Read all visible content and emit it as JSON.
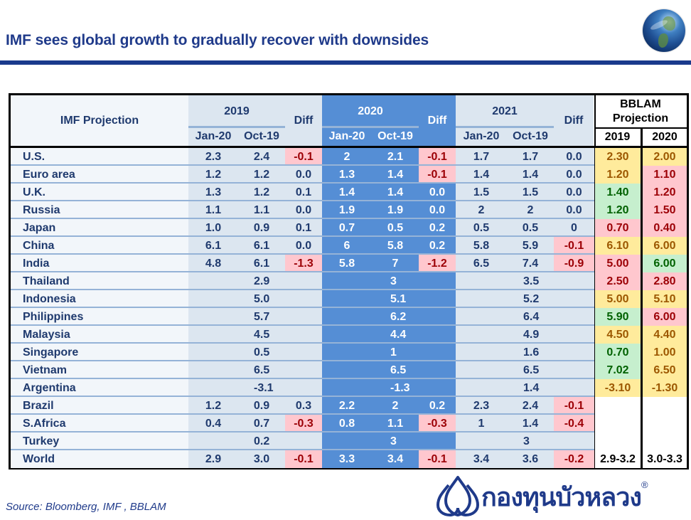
{
  "header": {
    "title": "IMF sees global growth to gradually recover with downsides",
    "globe_icon": "globe-icon"
  },
  "table": {
    "label_header": "IMF Projection",
    "groups": [
      {
        "year": "2019",
        "sub": [
          "Jan-20",
          "Oct-19"
        ],
        "diff": "Diff"
      },
      {
        "year": "2020",
        "sub": [
          "Jan-20",
          "Oct-19"
        ],
        "diff": "Diff"
      },
      {
        "year": "2021",
        "sub": [
          "Jan-20",
          "Oct-19"
        ],
        "diff": "Diff"
      }
    ],
    "bblam": {
      "title_line1": "BBLAM",
      "title_line2": "Projection",
      "years": [
        "2019",
        "2020"
      ]
    },
    "colors": {
      "negative_bg": "#ffc7ce",
      "negative_text": "#9c0006",
      "green_bg": "#c6efce",
      "green_text": "#006100",
      "yellow_bg": "#ffeb9c",
      "yellow_text": "#9c5700",
      "blue_block": "#558ed5",
      "light_block": "#dce6f0",
      "title_blue": "#1f3a8a"
    },
    "rows": [
      {
        "name": "U.S.",
        "y2019": [
          "2.3",
          "2.4",
          "-0.1"
        ],
        "y2020": [
          "2",
          "2.1",
          "-0.1"
        ],
        "y2021": [
          "1.7",
          "1.7",
          "0.0"
        ],
        "bblam": [
          {
            "v": "2.30",
            "c": "yellow"
          },
          {
            "v": "2.00",
            "c": "yellow"
          }
        ]
      },
      {
        "name": "Euro area",
        "y2019": [
          "1.2",
          "1.2",
          "0.0"
        ],
        "y2020": [
          "1.3",
          "1.4",
          "-0.1"
        ],
        "y2021": [
          "1.4",
          "1.4",
          "0.0"
        ],
        "bblam": [
          {
            "v": "1.20",
            "c": "yellow"
          },
          {
            "v": "1.10",
            "c": "red"
          }
        ]
      },
      {
        "name": "U.K.",
        "y2019": [
          "1.3",
          "1.2",
          "0.1"
        ],
        "y2020": [
          "1.4",
          "1.4",
          "0.0"
        ],
        "y2021": [
          "1.5",
          "1.5",
          "0.0"
        ],
        "bblam": [
          {
            "v": "1.40",
            "c": "green"
          },
          {
            "v": "1.20",
            "c": "red"
          }
        ]
      },
      {
        "name": "Russia",
        "y2019": [
          "1.1",
          "1.1",
          "0.0"
        ],
        "y2020": [
          "1.9",
          "1.9",
          "0.0"
        ],
        "y2021": [
          "2",
          "2",
          "0.0"
        ],
        "bblam": [
          {
            "v": "1.20",
            "c": "green"
          },
          {
            "v": "1.50",
            "c": "red"
          }
        ]
      },
      {
        "name": "Japan",
        "y2019": [
          "1.0",
          "0.9",
          "0.1"
        ],
        "y2020": [
          "0.7",
          "0.5",
          "0.2"
        ],
        "y2021": [
          "0.5",
          "0.5",
          "0"
        ],
        "bblam": [
          {
            "v": "0.70",
            "c": "red"
          },
          {
            "v": "0.40",
            "c": "red"
          }
        ]
      },
      {
        "name": "China",
        "y2019": [
          "6.1",
          "6.1",
          "0.0"
        ],
        "y2020": [
          "6",
          "5.8",
          "0.2"
        ],
        "y2021": [
          "5.8",
          "5.9",
          "-0.1"
        ],
        "bblam": [
          {
            "v": "6.10",
            "c": "yellow"
          },
          {
            "v": "6.00",
            "c": "yellow"
          }
        ]
      },
      {
        "name": "India",
        "y2019": [
          "4.8",
          "6.1",
          "-1.3"
        ],
        "y2020": [
          "5.8",
          "7",
          "-1.2"
        ],
        "y2021": [
          "6.5",
          "7.4",
          "-0.9"
        ],
        "bblam": [
          {
            "v": "5.00",
            "c": "red"
          },
          {
            "v": "6.00",
            "c": "green"
          }
        ]
      },
      {
        "name": "Thailand",
        "single": [
          "2.9",
          "3",
          "3.5"
        ],
        "bblam": [
          {
            "v": "2.50",
            "c": "red"
          },
          {
            "v": "2.80",
            "c": "red"
          }
        ]
      },
      {
        "name": "Indonesia",
        "single": [
          "5.0",
          "5.1",
          "5.2"
        ],
        "bblam": [
          {
            "v": "5.00",
            "c": "yellow"
          },
          {
            "v": "5.10",
            "c": "yellow"
          }
        ]
      },
      {
        "name": "Philippines",
        "single": [
          "5.7",
          "6.2",
          "6.4"
        ],
        "bblam": [
          {
            "v": "5.90",
            "c": "green"
          },
          {
            "v": "6.00",
            "c": "red"
          }
        ]
      },
      {
        "name": "Malaysia",
        "single": [
          "4.5",
          "4.4",
          "4.9"
        ],
        "bblam": [
          {
            "v": "4.50",
            "c": "yellow"
          },
          {
            "v": "4.40",
            "c": "yellow"
          }
        ]
      },
      {
        "name": "Singapore",
        "single": [
          "0.5",
          "1",
          "1.6"
        ],
        "bblam": [
          {
            "v": "0.70",
            "c": "green"
          },
          {
            "v": "1.00",
            "c": "yellow"
          }
        ]
      },
      {
        "name": "Vietnam",
        "single": [
          "6.5",
          "6.5",
          "6.5"
        ],
        "bblam": [
          {
            "v": "7.02",
            "c": "green"
          },
          {
            "v": "6.50",
            "c": "yellow"
          }
        ]
      },
      {
        "name": "Argentina",
        "single": [
          "-3.1",
          "-1.3",
          "1.4"
        ],
        "bblam": [
          {
            "v": "-3.10",
            "c": "yellow"
          },
          {
            "v": "-1.30",
            "c": "yellow"
          }
        ]
      },
      {
        "name": "Brazil",
        "y2019": [
          "1.2",
          "0.9",
          "0.3"
        ],
        "y2020": [
          "2.2",
          "2",
          "0.2"
        ],
        "y2021": [
          "2.3",
          "2.4",
          "-0.1"
        ],
        "bblam": [
          {
            "v": "",
            "c": "plain"
          },
          {
            "v": "",
            "c": "plain"
          }
        ]
      },
      {
        "name": "S.Africa",
        "y2019": [
          "0.4",
          "0.7",
          "-0.3"
        ],
        "y2020": [
          "0.8",
          "1.1",
          "-0.3"
        ],
        "y2021": [
          "1",
          "1.4",
          "-0.4"
        ],
        "bblam": [
          {
            "v": "",
            "c": "plain"
          },
          {
            "v": "",
            "c": "plain"
          }
        ]
      },
      {
        "name": "Turkey",
        "single": [
          "0.2",
          "3",
          "3"
        ],
        "bblam": [
          {
            "v": "",
            "c": "plain"
          },
          {
            "v": "",
            "c": "plain"
          }
        ]
      },
      {
        "name": "World",
        "y2019": [
          "2.9",
          "3.0",
          "-0.1"
        ],
        "y2020": [
          "3.3",
          "3.4",
          "-0.1"
        ],
        "y2021": [
          "3.4",
          "3.6",
          "-0.2"
        ],
        "bblam": [
          {
            "v": "2.9-3.2",
            "c": "plain"
          },
          {
            "v": "3.0-3.3",
            "c": "plain"
          }
        ]
      }
    ]
  },
  "footer": {
    "source": "Source:  Bloomberg, IMF , BBLAM",
    "logo_text": "กองทุนบัวหลวง",
    "logo_reg": "®",
    "logo_icon": "lotus-icon"
  }
}
